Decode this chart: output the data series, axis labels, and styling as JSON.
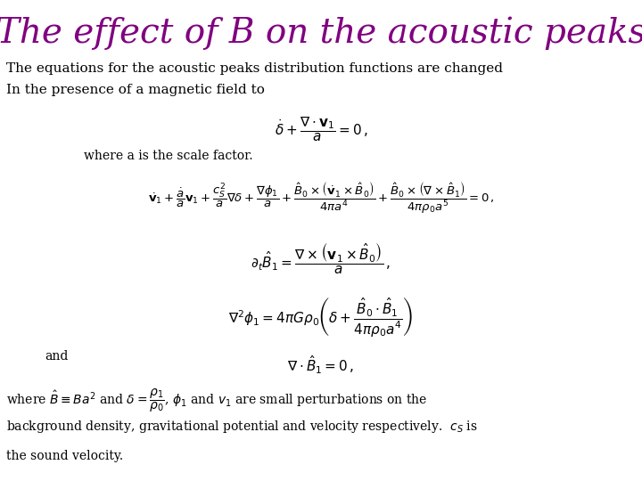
{
  "title": "The effect of B on the acoustic peaks",
  "title_color": "#800080",
  "title_fontsize": 28,
  "background_color": "#ffffff",
  "text_color": "#000000",
  "intro_line1": "The equations for the acoustic peaks distribution functions are changed",
  "intro_line2": "In the presence of a magnetic field to",
  "scale_note": "where a is the scale factor.",
  "and_note": "and",
  "footer_line1": "where $\\hat{B} \\equiv Ba^2$ and $\\delta = \\dfrac{\\rho_1}{\\rho_0}$, $\\phi_1$ and $v_1$ are small perturbations on the",
  "footer_line2": "background density, gravitational potential and velocity respectively.  $c_S$ is",
  "footer_line3": "the sound velocity."
}
